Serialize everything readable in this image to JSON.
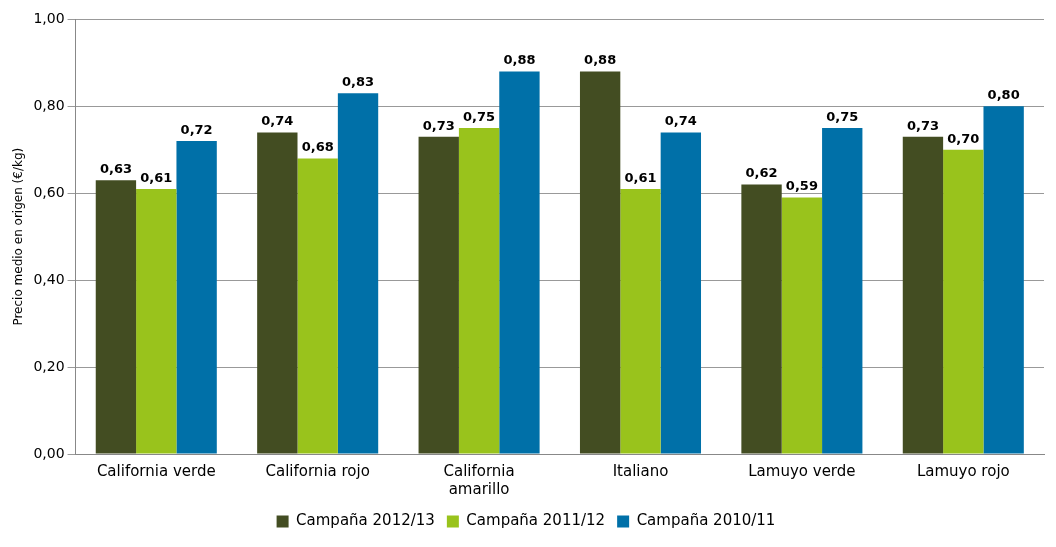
{
  "chart_data": {
    "type": "bar",
    "ylabel": "Precio medio en origen (€/kg)",
    "categories": [
      "California verde",
      "California rojo",
      "California amarillo",
      "Italiano",
      "Lamuyo verde",
      "Lamuyo rojo"
    ],
    "series": [
      {
        "name": "Campaña 2012/13",
        "color": "#434d22",
        "values": [
          0.63,
          0.74,
          0.73,
          0.88,
          0.62,
          0.73
        ],
        "value_labels": [
          "0,63",
          "0,74",
          "0,73",
          "0,88",
          "0,62",
          "0,73"
        ]
      },
      {
        "name": "Campaña 2011/12",
        "color": "#99c31c",
        "values": [
          0.61,
          0.68,
          0.75,
          0.61,
          0.59,
          0.7
        ],
        "value_labels": [
          "0,61",
          "0,68",
          "0,75",
          "0,61",
          "0,59",
          "0,70"
        ]
      },
      {
        "name": "Campaña 2010/11",
        "color": "#0070a8",
        "values": [
          0.72,
          0.83,
          0.88,
          0.74,
          0.75,
          0.8
        ],
        "value_labels": [
          "0,72",
          "0,83",
          "0,88",
          "0,74",
          "0,75",
          "0,80"
        ]
      }
    ],
    "ylim": [
      0,
      1
    ],
    "yticks": [
      {
        "value": 0,
        "label": "0,00"
      },
      {
        "value": 0.2,
        "label": "0,20"
      },
      {
        "value": 0.4,
        "label": "0,40"
      },
      {
        "value": 0.6,
        "label": "0,60"
      },
      {
        "value": 0.8,
        "label": "0,80"
      },
      {
        "value": 1,
        "label": "1,00"
      }
    ],
    "grid": "y",
    "legend": "bottom"
  }
}
